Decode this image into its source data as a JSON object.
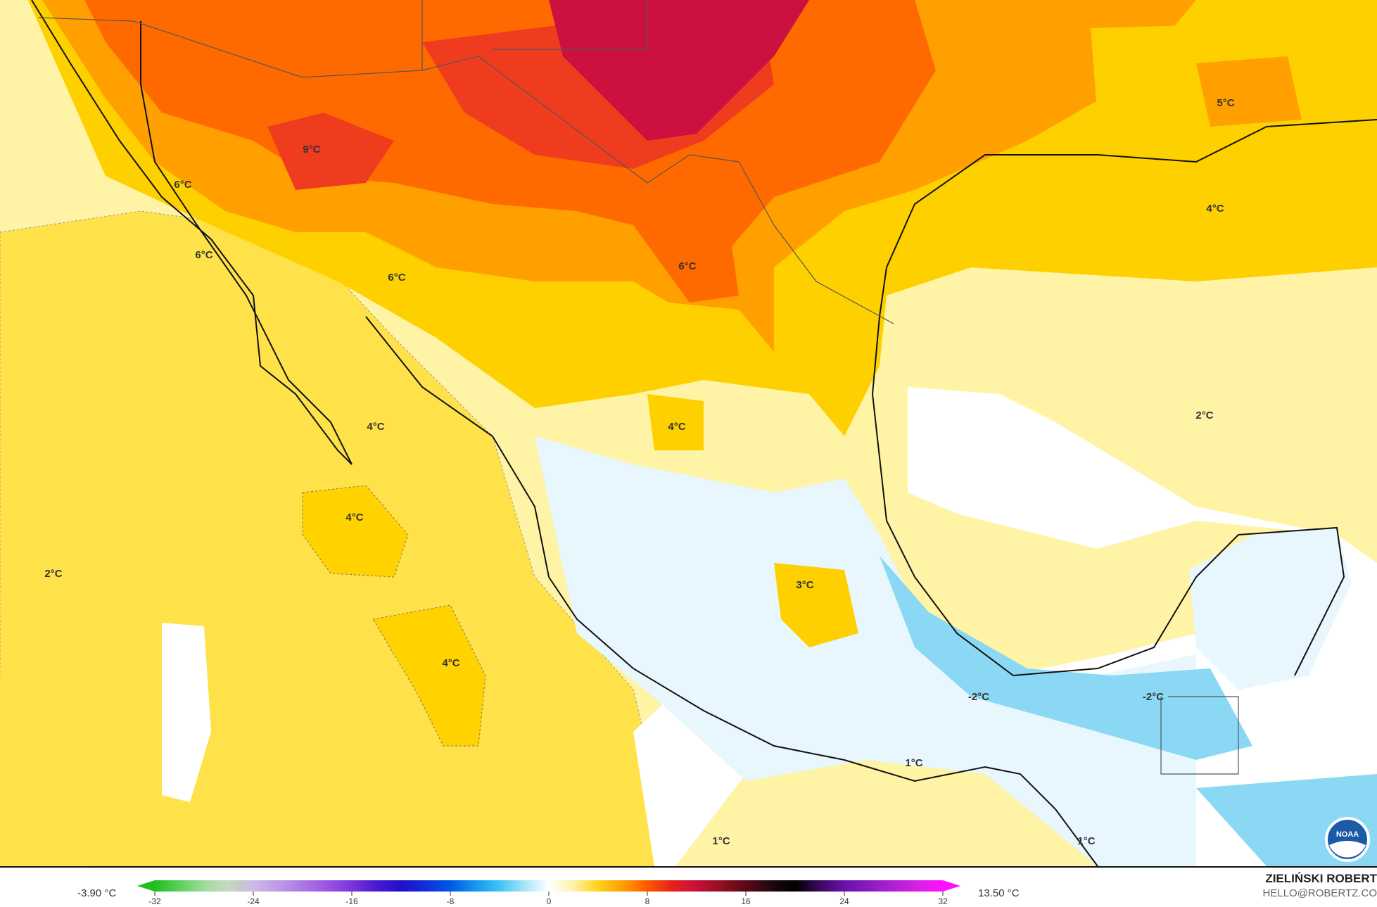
{
  "map": {
    "variable_unit": "°C",
    "contour_labels": [
      {
        "text": "9°C",
        "lon_region": "northern-mexico-sonora"
      },
      {
        "text": "6°C",
        "lon_region": "baja-north"
      },
      {
        "text": "6°C",
        "lon_region": "baja-central"
      },
      {
        "text": "6°C",
        "lon_region": "sinaloa"
      },
      {
        "text": "6°C",
        "lon_region": "nuevo-leon"
      },
      {
        "text": "5°C",
        "lon_region": "louisiana"
      },
      {
        "text": "4°C",
        "lon_region": "gulf-north"
      },
      {
        "text": "2°C",
        "lon_region": "gulf-east"
      },
      {
        "text": "4°C",
        "lon_region": "baja-south"
      },
      {
        "text": "4°C",
        "lon_region": "zacatecas"
      },
      {
        "text": "4°C",
        "lon_region": "pacific-west"
      },
      {
        "text": "2°C",
        "lon_region": "pacific-far-west"
      },
      {
        "text": "3°C",
        "lon_region": "central-mexico"
      },
      {
        "text": "4°C",
        "lon_region": "pacific-south"
      },
      {
        "text": "-2°C",
        "lon_region": "veracruz"
      },
      {
        "text": "-2°C",
        "lon_region": "yucatan-south"
      },
      {
        "text": "1°C",
        "lon_region": "oaxaca"
      },
      {
        "text": "1°C",
        "lon_region": "pacific-southeast"
      },
      {
        "text": "1°C",
        "lon_region": "guatemala-coast"
      }
    ],
    "logo": "NOAA"
  },
  "legend": {
    "min_value": "-3.90 °C",
    "max_value": "13.50 °C",
    "ticks": [
      "-32",
      "-24",
      "-16",
      "-8",
      "0",
      "8",
      "16",
      "24",
      "32"
    ],
    "color_stops": [
      [
        -32,
        "#1fbf1f"
      ],
      [
        -30,
        "#5cd05c"
      ],
      [
        -28,
        "#9fdc9a"
      ],
      [
        -26,
        "#c9d8c6"
      ],
      [
        -25,
        "#c8c8c8"
      ],
      [
        -24,
        "#cdbbe8"
      ],
      [
        -21,
        "#b58ae6"
      ],
      [
        -18,
        "#9a55e0"
      ],
      [
        -16,
        "#7a35dc"
      ],
      [
        -14,
        "#4a1ad0"
      ],
      [
        -12,
        "#1f0fc8"
      ],
      [
        -10,
        "#1030d8"
      ],
      [
        -8,
        "#0058e6"
      ],
      [
        -6,
        "#1496f2"
      ],
      [
        -4,
        "#3ec4f8"
      ],
      [
        -2,
        "#a8e4f8"
      ],
      [
        0,
        "#ffffff"
      ],
      [
        2,
        "#fff2a8"
      ],
      [
        4,
        "#ffd21a"
      ],
      [
        6,
        "#ff9e00"
      ],
      [
        8,
        "#ff5a00"
      ],
      [
        10,
        "#e8201a"
      ],
      [
        12,
        "#c8103c"
      ],
      [
        14,
        "#901020"
      ],
      [
        16,
        "#5a0818"
      ],
      [
        18,
        "#200810"
      ],
      [
        20,
        "#000000"
      ],
      [
        22,
        "#3a0860"
      ],
      [
        24,
        "#6a10a8"
      ],
      [
        27,
        "#9a20c8"
      ],
      [
        30,
        "#d820e8"
      ],
      [
        32,
        "#ff10ff"
      ]
    ]
  },
  "credits": {
    "author": "ZIELIŃSKI ROBERT",
    "email": "HELLO@ROBERTZ.CO"
  }
}
